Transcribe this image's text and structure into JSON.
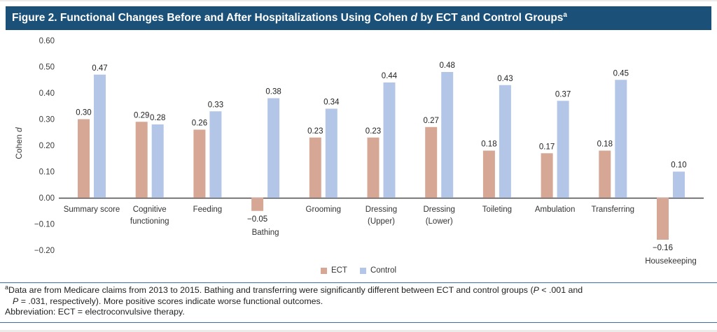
{
  "figure": {
    "title": {
      "prefix": "Figure 2. Functional Changes Before and After Hospitalizations Using Cohen ",
      "italic": "d",
      "suffix": " by ECT and Control Groups",
      "superscript": "a"
    },
    "title_bar_color": "#1b5078"
  },
  "chart_data": {
    "type": "bar",
    "title": "",
    "xlabel": "",
    "ylabel": {
      "text": "Cohen ",
      "italic": "d"
    },
    "ylim": [
      -0.2,
      0.6
    ],
    "ytick_step": 0.1,
    "grid": false,
    "legend_position": "bottom-center",
    "yticks": [
      {
        "value": 0.6,
        "label": "0.60"
      },
      {
        "value": 0.5,
        "label": "0.50"
      },
      {
        "value": 0.4,
        "label": "0.40"
      },
      {
        "value": 0.3,
        "label": "0.30"
      },
      {
        "value": 0.2,
        "label": "0.20"
      },
      {
        "value": 0.1,
        "label": "0.10"
      },
      {
        "value": 0.0,
        "label": "0.00"
      },
      {
        "value": -0.1,
        "label": "−0.10"
      },
      {
        "value": -0.2,
        "label": "−0.20"
      }
    ],
    "categories": [
      "Summary score",
      "Cognitive functioning",
      "Feeding",
      "Bathing",
      "Grooming",
      "Dressing (Upper)",
      "Dressing (Lower)",
      "Toileting",
      "Ambulation",
      "Transferring",
      "Housekeeping"
    ],
    "category_lines": [
      [
        "Summary score"
      ],
      [
        "Cognitive",
        "functioning"
      ],
      [
        "Feeding"
      ],
      [
        "Bathing"
      ],
      [
        "Grooming"
      ],
      [
        "Dressing",
        "(Upper)"
      ],
      [
        "Dressing",
        "(Lower)"
      ],
      [
        "Toileting"
      ],
      [
        "Ambulation"
      ],
      [
        "Transferring"
      ],
      [
        "Housekeeping"
      ]
    ],
    "series": [
      {
        "name": "ECT",
        "color": "#d6a794",
        "values": [
          0.3,
          0.29,
          0.26,
          -0.05,
          0.23,
          0.23,
          0.27,
          0.18,
          0.17,
          0.18,
          -0.16
        ],
        "value_labels": [
          "0.30",
          "0.29",
          "0.26",
          "−0.05",
          "0.23",
          "0.23",
          "0.27",
          "0.18",
          "0.17",
          "0.18",
          "−0.16"
        ]
      },
      {
        "name": "Control",
        "color": "#b4c6e8",
        "values": [
          0.47,
          0.28,
          0.33,
          0.38,
          0.34,
          0.44,
          0.48,
          0.43,
          0.37,
          0.45,
          0.1
        ],
        "value_labels": [
          "0.47",
          "0.28",
          "0.33",
          "0.38",
          "0.34",
          "0.44",
          "0.48",
          "0.43",
          "0.37",
          "0.45",
          "0.10"
        ]
      }
    ]
  },
  "footnote": {
    "superscript": "a",
    "seg1": "Data are from Medicare claims from 2013 to 2015. Bathing and transferring were significantly different between ECT and control groups (",
    "p1": "P",
    "seg2": " < .001 and",
    "p2": "P",
    "seg3": " = .031, respectively). More positive scores indicate worse functional outcomes.",
    "abbreviation": "Abbreviation: ECT = electroconvulsive therapy."
  }
}
